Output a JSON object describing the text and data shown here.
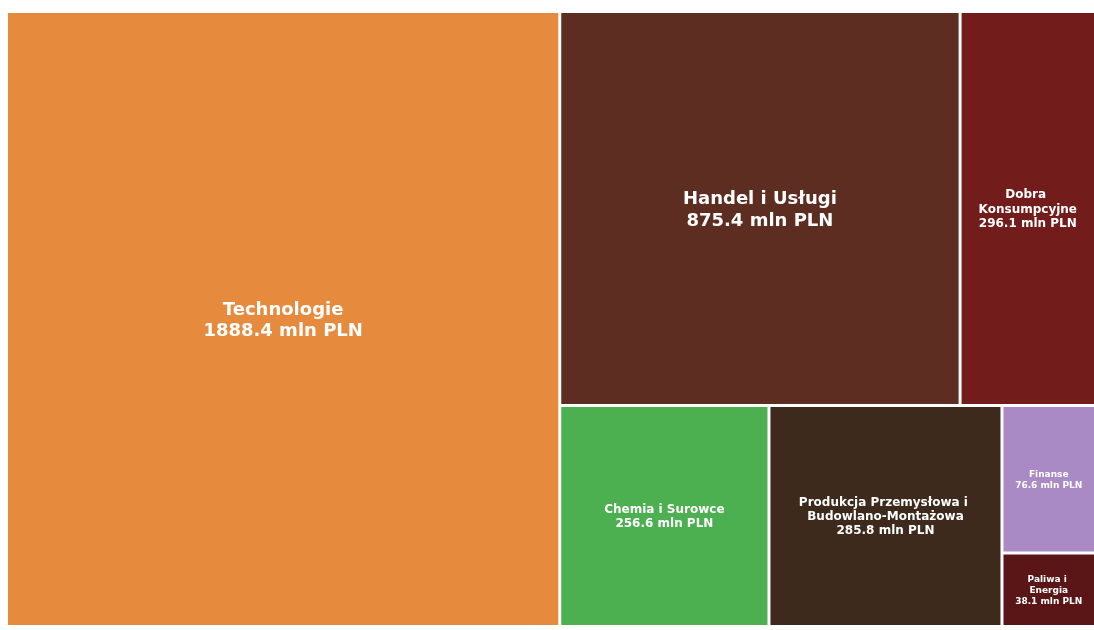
{
  "chart_data": {
    "type": "other",
    "categories": [
      "Technologie",
      "Handel i Usługi",
      "Dobra Konsumpcyjne",
      "Chemia i Surowce",
      "Produkcja Przemysłowa i Budowlano-Montażowa",
      "Finanse",
      "Paliwa i Energia"
    ],
    "values": [
      1888.4,
      875.4,
      296.1,
      256.6,
      285.8,
      76.6,
      38.1
    ],
    "value_labels": [
      "1888.4 mln PLN",
      "875.4 mln PLN",
      "296.1 mln PLN",
      "256.6 mln PLN",
      "285.8 mln PLN",
      "76.6 mln PLN",
      "38.1 mln PLN"
    ],
    "colors": [
      "#e68a3e",
      "#5c2d20",
      "#721c1c",
      "#4caf50",
      "#3d2a1d",
      "#a98ac4",
      "#5a1616"
    ]
  }
}
